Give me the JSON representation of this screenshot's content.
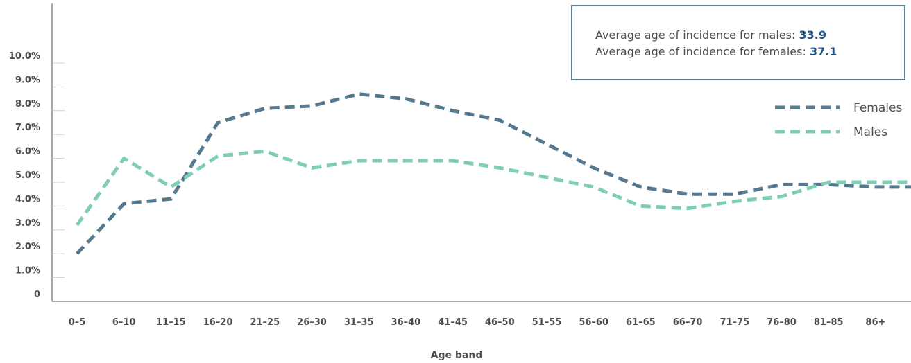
{
  "annotations": [
    {
      "label": "Average age of incidence for males:",
      "value": "33.9"
    },
    {
      "label": "Average age of incidence for females:",
      "value": "37.1"
    }
  ],
  "colors": {
    "females": "#56798f",
    "males": "#7ecdb6",
    "axis": "#4d4d4d",
    "value_accent": "#1f5287"
  },
  "chart_data": {
    "type": "line",
    "xlabel": "Age band",
    "ylabel": "",
    "categories": [
      "0–5",
      "6–10",
      "11–15",
      "16–20",
      "21–25",
      "26–30",
      "31–35",
      "36–40",
      "41–45",
      "46–50",
      "51–55",
      "56–60",
      "61–65",
      "66–70",
      "71–75",
      "76–80",
      "81–85",
      "86+"
    ],
    "yticks": [
      "0",
      "1.0%",
      "2.0%",
      "3.0%",
      "4.0%",
      "5.0%",
      "6.0%",
      "7.0%",
      "8.0%",
      "9.0%",
      "10.0%"
    ],
    "ylim": [
      0,
      10
    ],
    "grid": false,
    "legend_position": "right",
    "line_style": "dashed",
    "series": [
      {
        "name": "Females",
        "color": "#56798f",
        "values": [
          2.0,
          4.1,
          4.3,
          7.5,
          8.1,
          8.2,
          8.7,
          8.5,
          8.0,
          7.6,
          6.6,
          5.6,
          4.8,
          4.5,
          4.5,
          4.9,
          4.9,
          4.8
        ]
      },
      {
        "name": "Males",
        "color": "#7ecdb6",
        "values": [
          3.2,
          6.0,
          4.8,
          6.1,
          6.3,
          5.6,
          5.9,
          5.9,
          5.9,
          5.6,
          5.2,
          4.8,
          4.0,
          3.9,
          4.2,
          4.4,
          5.0,
          5.0
        ]
      }
    ]
  }
}
